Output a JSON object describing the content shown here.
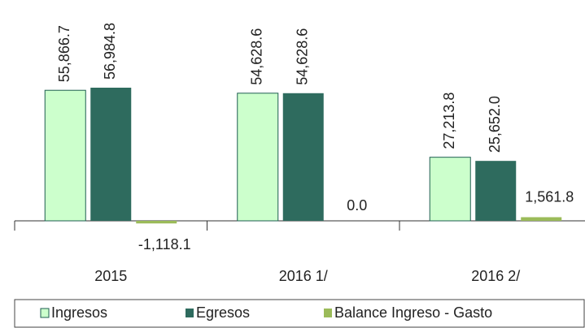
{
  "chart_data": {
    "type": "bar",
    "categories": [
      "2015",
      "2016 1/",
      "2016 2/"
    ],
    "series": [
      {
        "name": "Ingresos",
        "color": "#ccffcc",
        "values": [
          55866.7,
          54628.6,
          27213.8
        ],
        "value_labels": [
          "55,866.7",
          "54,628.6",
          "27,213.8"
        ]
      },
      {
        "name": "Egresos",
        "color": "#2e6b5e",
        "values": [
          56984.8,
          54628.6,
          25652.0
        ],
        "value_labels": [
          "56,984.8",
          "54,628.6",
          "25,652.0"
        ]
      },
      {
        "name": "Balance Ingreso - Gasto",
        "color": "#9bbb59",
        "values": [
          -1118.1,
          0.0,
          1561.8
        ],
        "value_labels": [
          "-1,118.1",
          "0.0",
          "1,561.8"
        ]
      }
    ],
    "legend": "bottom"
  }
}
